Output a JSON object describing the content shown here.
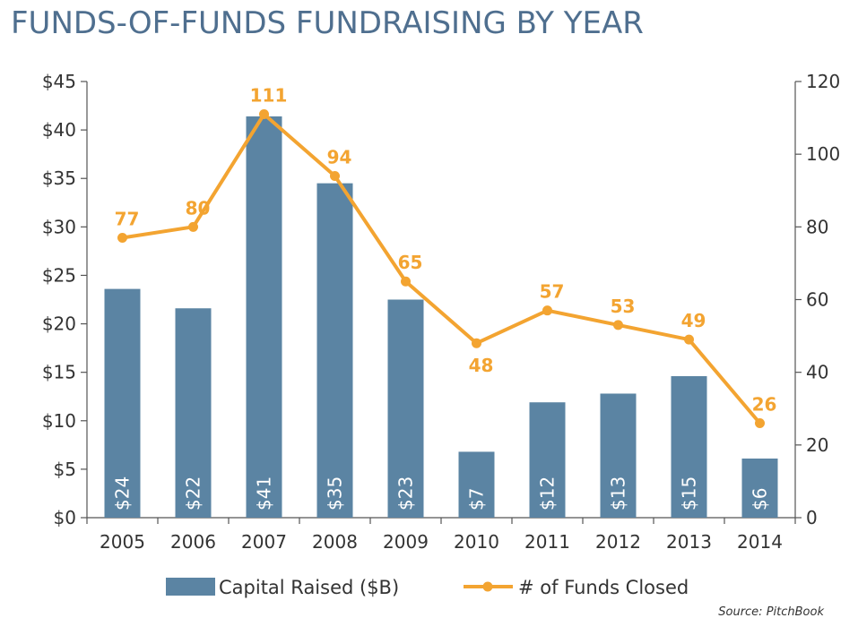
{
  "title": "FUNDS-OF-FUNDS FUNDRAISING BY YEAR",
  "source": "Source: PitchBook",
  "chart_data": {
    "type": "bar",
    "title": "FUNDS-OF-FUNDS FUNDRAISING BY YEAR",
    "categories": [
      "2005",
      "2006",
      "2007",
      "2008",
      "2009",
      "2010",
      "2011",
      "2012",
      "2013",
      "2014"
    ],
    "series": [
      {
        "name": "Capital Raised ($B)",
        "type": "bar",
        "axis": "left",
        "color": "#5b84a3",
        "values": [
          23.6,
          21.6,
          41.4,
          34.5,
          22.5,
          6.8,
          11.9,
          12.8,
          14.6,
          6.1
        ],
        "labels": [
          "$24",
          "$22",
          "$41",
          "$35",
          "$23",
          "$7",
          "$12",
          "$13",
          "$15",
          "$6"
        ]
      },
      {
        "name": "# of Funds Closed",
        "type": "line",
        "axis": "right",
        "color": "#f3a431",
        "values": [
          77,
          80,
          111,
          94,
          65,
          48,
          57,
          53,
          49,
          26
        ],
        "labels": [
          "77",
          "80",
          "111",
          "94",
          "65",
          "48",
          "57",
          "53",
          "49",
          "26"
        ]
      }
    ],
    "y_left": {
      "min": 0,
      "max": 45,
      "step": 5,
      "tick_labels": [
        "$0",
        "$5",
        "$10",
        "$15",
        "$20",
        "$25",
        "$30",
        "$35",
        "$40",
        "$45"
      ]
    },
    "y_right": {
      "min": 0,
      "max": 120,
      "step": 20,
      "tick_labels": [
        "0",
        "20",
        "40",
        "60",
        "80",
        "100",
        "120"
      ]
    },
    "grid": false,
    "legend_position": "bottom"
  }
}
